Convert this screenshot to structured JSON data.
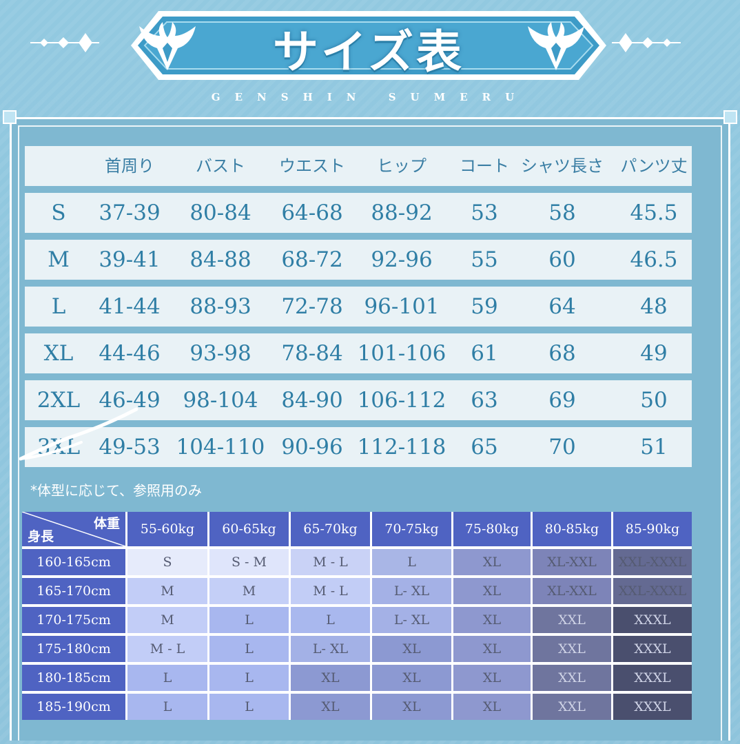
{
  "header": {
    "title": "サイズ表",
    "subtitle": "GENSHIN SUMERU"
  },
  "colors": {
    "background": "#8fc6de",
    "row_bg": "#e9f2f6",
    "row_text": "#2f7ea5",
    "grid_header": "#4f63c2"
  },
  "size_table": {
    "headers": [
      "",
      "首周り",
      "バスト",
      "ウエスト",
      "ヒップ",
      "コート",
      "シャツ長さ",
      "パンツ丈"
    ],
    "rows": [
      [
        "S",
        "37-39",
        "80-84",
        "64-68",
        "88-92",
        "53",
        "58",
        "45.5"
      ],
      [
        "M",
        "39-41",
        "84-88",
        "68-72",
        "92-96",
        "55",
        "60",
        "46.5"
      ],
      [
        "L",
        "41-44",
        "88-93",
        "72-78",
        "96-101",
        "59",
        "64",
        "48"
      ],
      [
        "XL",
        "44-46",
        "93-98",
        "78-84",
        "101-106",
        "61",
        "68",
        "49"
      ],
      [
        "2XL",
        "46-49",
        "98-104",
        "84-90",
        "106-112",
        "63",
        "69",
        "50"
      ],
      [
        "3XL",
        "49-53",
        "104-110",
        "90-96",
        "112-118",
        "65",
        "70",
        "51"
      ]
    ]
  },
  "note": "*体型に応じて、参照用のみ",
  "weight_grid": {
    "corner_weight": "体重",
    "corner_height": "身長",
    "weights": [
      "55-60kg",
      "60-65kg",
      "65-70kg",
      "70-75kg",
      "75-80kg",
      "80-85kg",
      "85-90kg"
    ],
    "rows": [
      {
        "height": "160-165cm",
        "sizes": [
          "S",
          "S - M",
          "M - L",
          "L",
          "XL",
          "XL-XXL",
          "XXL-XXXL"
        ]
      },
      {
        "height": "165-170cm",
        "sizes": [
          "M",
          "M",
          "M - L",
          "L- XL",
          "XL",
          "XL-XXL",
          "XXL-XXXL"
        ]
      },
      {
        "height": "170-175cm",
        "sizes": [
          "M",
          "L",
          "L",
          "L- XL",
          "XL",
          "XXL",
          "XXXL"
        ]
      },
      {
        "height": "175-180cm",
        "sizes": [
          "M - L",
          "L",
          "L- XL",
          "XL",
          "XL",
          "XXL",
          "XXXL"
        ]
      },
      {
        "height": "180-185cm",
        "sizes": [
          "L",
          "L",
          "XL",
          "XL",
          "XL",
          "XXL",
          "XXXL"
        ]
      },
      {
        "height": "185-190cm",
        "sizes": [
          "L",
          "L",
          "XL",
          "XL",
          "XL",
          "XXL",
          "XXXL"
        ]
      }
    ]
  }
}
